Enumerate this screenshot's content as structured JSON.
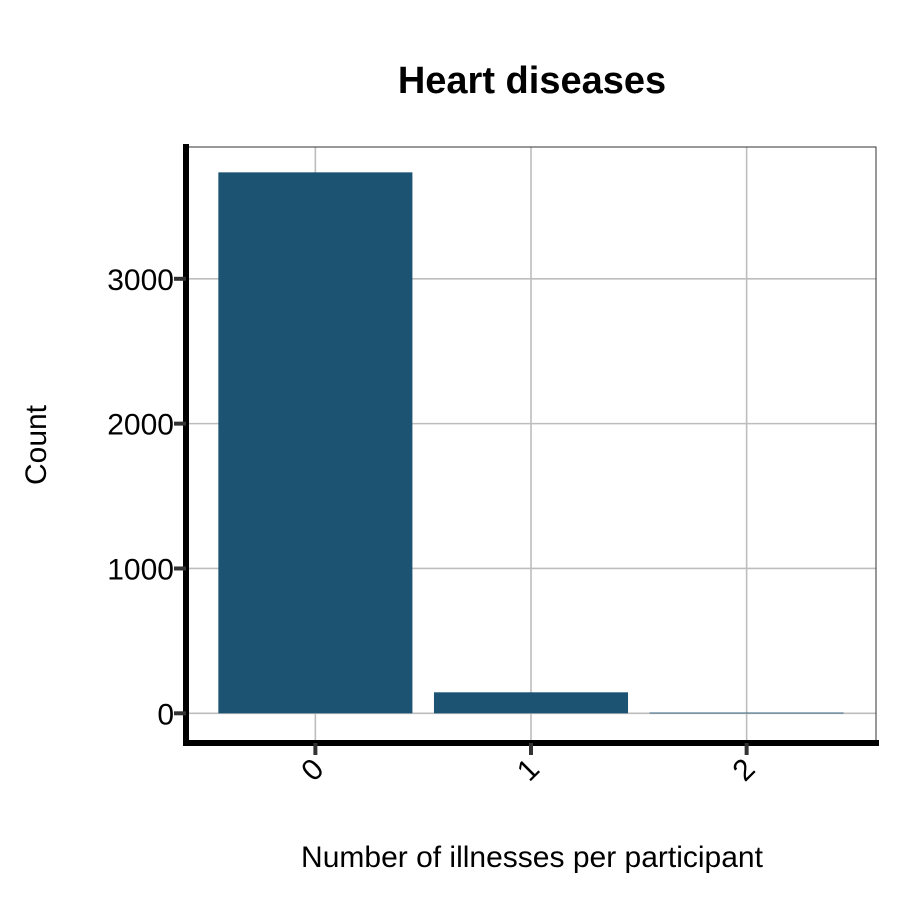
{
  "chart_data": {
    "type": "bar",
    "title": "Heart diseases",
    "xlabel": "Number of illnesses per participant",
    "ylabel": "Count",
    "categories": [
      "0",
      "1",
      "2"
    ],
    "values": [
      3735,
      145,
      5
    ],
    "ylim": [
      -205,
      3910
    ],
    "yticks": [
      0,
      1000,
      2000,
      3000
    ],
    "ytick_labels": [
      "0",
      "1000",
      "2000",
      "3000"
    ],
    "grid": true,
    "legend": "none",
    "bar_color": "#1c5373",
    "x_tick_rotation": "45"
  }
}
